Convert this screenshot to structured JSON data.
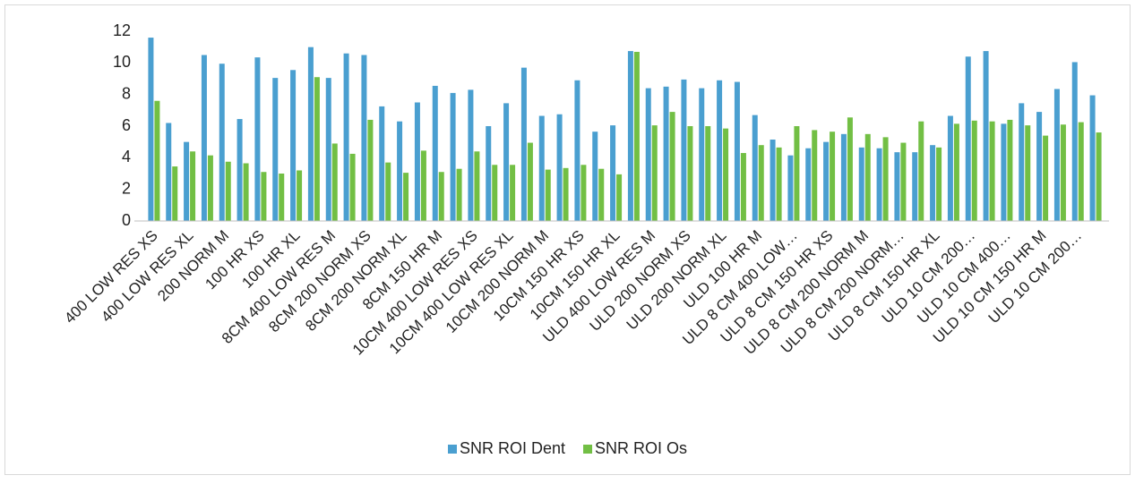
{
  "chart_data": {
    "type": "bar",
    "categories": [
      "400 LOW RES XS",
      null,
      "400 LOW RES XL",
      null,
      "200 NORM M",
      null,
      "100 HR XS",
      null,
      "100 HR XL",
      null,
      "8CM 400 LOW RES M",
      null,
      "8CM 200 NORM XS",
      null,
      "8CM 200 NORM XL",
      null,
      "8CM 150 HR M",
      null,
      "10CM 400 LOW RES XS",
      null,
      "10CM 400 LOW RES XL",
      null,
      "10CM 200 NORM M",
      null,
      "10CM 150 HR XS",
      null,
      "10CM 150 HR XL",
      null,
      "ULD 400 LOW RES M",
      null,
      "ULD 200 NORM XS",
      null,
      "ULD 200 NORM XL",
      null,
      "ULD 100 HR M",
      null,
      "ULD 8 CM 400 LOW…",
      null,
      "ULD 8 CM 150 HR XS",
      null,
      "ULD 8 CM 200 NORM M",
      null,
      "ULD 8 CM 200 NORM…",
      null,
      "ULD 8 CM 150 HR XL",
      null,
      "ULD 10 CM 200…",
      null,
      "ULD 10 CM 400…",
      null,
      "ULD 10 CM 150 HR M",
      null,
      "ULD 10 CM 200…",
      null
    ],
    "series": [
      {
        "name": "SNR ROI Dent",
        "color": "#4a9fd0",
        "values": [
          11.6,
          6.2,
          5.0,
          10.5,
          9.95,
          6.45,
          10.35,
          9.05,
          9.55,
          11.0,
          9.05,
          10.6,
          10.5,
          7.25,
          6.3,
          7.5,
          8.55,
          8.1,
          8.3,
          6.0,
          7.45,
          9.7,
          6.65,
          6.75,
          8.9,
          5.65,
          6.05,
          10.75,
          8.4,
          8.5,
          8.95,
          8.4,
          8.9,
          8.8,
          6.7,
          5.15,
          4.15,
          4.6,
          5.0,
          5.5,
          4.65,
          4.6,
          4.35,
          4.35,
          4.8,
          6.65,
          10.4,
          10.75,
          6.15,
          7.45,
          6.9,
          8.35,
          10.05,
          7.95
        ]
      },
      {
        "name": "SNR ROI Os",
        "color": "#72bf44",
        "values": [
          7.6,
          3.45,
          4.4,
          4.15,
          3.75,
          3.65,
          3.1,
          3.0,
          3.2,
          9.1,
          4.9,
          4.25,
          6.4,
          3.7,
          3.05,
          4.45,
          3.1,
          3.3,
          4.4,
          3.55,
          3.55,
          4.95,
          3.25,
          3.35,
          3.55,
          3.3,
          2.95,
          10.7,
          6.05,
          6.9,
          6.0,
          6.0,
          5.85,
          4.3,
          4.8,
          4.65,
          6.0,
          5.75,
          5.65,
          6.55,
          5.5,
          5.3,
          4.95,
          6.3,
          4.65,
          6.15,
          6.35,
          6.3,
          6.4,
          6.05,
          5.4,
          6.1,
          6.25,
          5.6
        ]
      }
    ],
    "ylim": [
      0,
      12
    ],
    "yticks": [
      0,
      2,
      4,
      6,
      8,
      10,
      12
    ],
    "legend": "bottom"
  }
}
